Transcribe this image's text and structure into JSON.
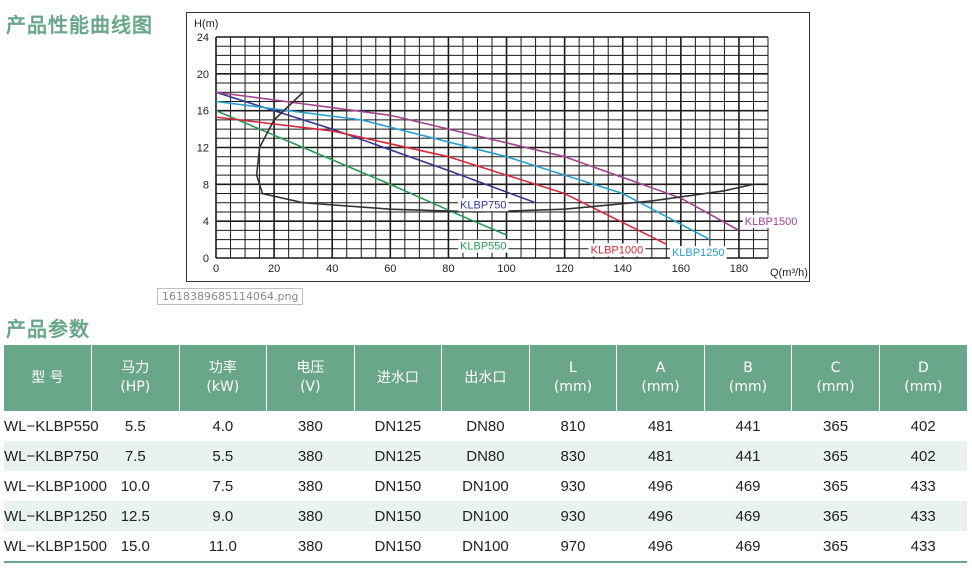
{
  "headings": {
    "curve_section": "产品性能曲线图",
    "params_section": "产品参数"
  },
  "image_caption": "1618389685114064.png",
  "chart_data": {
    "type": "line",
    "ylabel": "H(m)",
    "xlabel": "Q(m³/h)",
    "xlim": [
      0,
      190
    ],
    "ylim": [
      0,
      24
    ],
    "x_ticks": [
      "0",
      "20",
      "40",
      "60",
      "80",
      "100",
      "120",
      "140",
      "160",
      "180"
    ],
    "y_ticks": [
      "0",
      "4",
      "8",
      "12",
      "16",
      "20",
      "24"
    ],
    "grid": true,
    "series": [
      {
        "name": "KLBP550",
        "color": "#2a9a55",
        "x": [
          0,
          30,
          60,
          85,
          100
        ],
        "y": [
          16,
          12,
          8,
          4.5,
          2.5
        ]
      },
      {
        "name": "KLBP750",
        "color": "#35378f",
        "x": [
          0,
          40,
          80,
          110
        ],
        "y": [
          18,
          14,
          9.5,
          6
        ]
      },
      {
        "name": "KLBP1000",
        "color": "#d8283a",
        "x": [
          0,
          40,
          80,
          120,
          155
        ],
        "y": [
          15.3,
          13.8,
          11,
          7,
          1.5
        ]
      },
      {
        "name": "KLBP1250",
        "color": "#2a9fd0",
        "x": [
          0,
          50,
          100,
          140,
          170
        ],
        "y": [
          17,
          15,
          11,
          7,
          2
        ]
      },
      {
        "name": "KLBP1500",
        "color": "#a3448f",
        "x": [
          0,
          60,
          120,
          160,
          180
        ],
        "y": [
          18,
          15.5,
          11,
          6.5,
          3
        ]
      },
      {
        "name": "",
        "color": "#333333",
        "x": [
          30,
          20,
          15,
          14,
          16,
          30,
          60,
          90,
          120,
          150,
          175,
          185
        ],
        "y": [
          18,
          15,
          12,
          9,
          7,
          6,
          5.3,
          5,
          5.3,
          6.2,
          7.3,
          8
        ]
      }
    ]
  },
  "table": {
    "headers": [
      {
        "line1": "型 号",
        "line2": ""
      },
      {
        "line1": "马力",
        "line2": "(HP)"
      },
      {
        "line1": "功率",
        "line2": "(kW)"
      },
      {
        "line1": "电压",
        "line2": "(V)"
      },
      {
        "line1": "进水口",
        "line2": ""
      },
      {
        "line1": "出水口",
        "line2": ""
      },
      {
        "line1": "L",
        "line2": "(mm)"
      },
      {
        "line1": "A",
        "line2": "(mm)"
      },
      {
        "line1": "B",
        "line2": "(mm)"
      },
      {
        "line1": "C",
        "line2": "(mm)"
      },
      {
        "line1": "D",
        "line2": "(mm)"
      }
    ],
    "rows": [
      [
        "WL−KLBP550",
        "5.5",
        "4.0",
        "380",
        "DN125",
        "DN80",
        "810",
        "481",
        "441",
        "365",
        "402"
      ],
      [
        "WL−KLBP750",
        "7.5",
        "5.5",
        "380",
        "DN125",
        "DN80",
        "830",
        "481",
        "441",
        "365",
        "402"
      ],
      [
        "WL−KLBP1000",
        "10.0",
        "7.5",
        "380",
        "DN150",
        "DN100",
        "930",
        "496",
        "469",
        "365",
        "433"
      ],
      [
        "WL−KLBP1250",
        "12.5",
        "9.0",
        "380",
        "DN150",
        "DN100",
        "930",
        "496",
        "469",
        "365",
        "433"
      ],
      [
        "WL−KLBP1500",
        "15.0",
        "11.0",
        "380",
        "DN150",
        "DN100",
        "970",
        "496",
        "469",
        "365",
        "433"
      ]
    ]
  }
}
